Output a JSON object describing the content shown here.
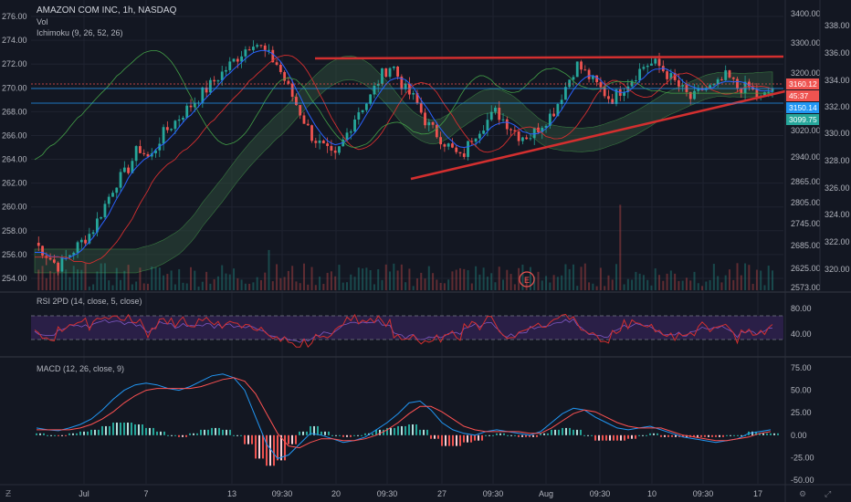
{
  "header": {
    "symbol": "AMAZON COM INC, 1h, NASDAQ",
    "vol_label": "Vol",
    "ichimoku_label": "Ichimoku (9, 26, 52, 26)"
  },
  "rsi_panel": {
    "label": "RSI 2PD (14, close, 5, close)"
  },
  "macd_panel": {
    "label": "MACD (12, 26, close, 9)"
  },
  "earnings_marker": "E",
  "colors": {
    "background": "#131722",
    "grid": "#1f2330",
    "bull": "#26a69a",
    "bear": "#ef5350",
    "trendline": "#d32f2f",
    "kijun": "#d32f2f",
    "tenkan": "#2962ff",
    "chikou": "#43a047",
    "cloud": "#2e4a3a",
    "rsi_band": "#2a1f47",
    "macd_line": "#2196f3",
    "signal_line": "#ff5252",
    "text": "#b2b5be"
  },
  "chart_data": [
    {
      "type": "candlestick",
      "title": "AMAZON COM INC, 1h, NASDAQ",
      "left_axis": {
        "ticks": [
          "276.00",
          "274.00",
          "272.00",
          "270.00",
          "268.00",
          "266.00",
          "264.00",
          "262.00",
          "260.00",
          "258.00",
          "256.00",
          "254.00"
        ],
        "range": [
          253,
          277
        ]
      },
      "right_axis_volume_price": {
        "ticks": [
          "3400.00",
          "3300.00",
          "3200.00",
          "3160.12",
          "3150.14",
          "3099.75",
          "3020.00",
          "2940.00",
          "2865.00",
          "2805.00",
          "2745.00",
          "2685.00",
          "2625.00",
          "2573.00"
        ]
      },
      "right_axis_outer": {
        "ticks": [
          "338.00",
          "336.00",
          "334.00",
          "332.00",
          "330.00",
          "328.00",
          "326.00",
          "324.00",
          "322.00",
          "320.00"
        ]
      },
      "price_tags": [
        {
          "text": "3160.12",
          "color": "#ef5350"
        },
        {
          "text": "45:37",
          "color": "#ef5350"
        },
        {
          "text": "3150.14",
          "color": "#2196f3"
        },
        {
          "text": "3099.75",
          "color": "#26a69a"
        }
      ],
      "x_ticks": [
        "Jul",
        "7",
        "13",
        "09:30",
        "20",
        "09:30",
        "27",
        "09:30",
        "Aug",
        "09:30",
        "10",
        "09:30",
        "17"
      ],
      "price_path": [
        257,
        256,
        255,
        256,
        257,
        258,
        260,
        262,
        263,
        265,
        264,
        266,
        267,
        268,
        269,
        270,
        271,
        272,
        273,
        274,
        273,
        272,
        270,
        268,
        266,
        265,
        264,
        266,
        268,
        269,
        271,
        272,
        270,
        269,
        267,
        266,
        265,
        264,
        266,
        267,
        268,
        267,
        266,
        266,
        267,
        268,
        270,
        272,
        271,
        270,
        269,
        270,
        271,
        272,
        272,
        271,
        270,
        269,
        270,
        270,
        271,
        270,
        270,
        269,
        270
      ],
      "trendlines": [
        {
          "from": [
            345,
            64
          ],
          "to": [
            858,
            62
          ]
        },
        {
          "from": [
            450,
            196
          ],
          "to": [
            860,
            100
          ]
        }
      ]
    },
    {
      "type": "line",
      "title": "RSI 2PD (14, close, 5, close)",
      "y_ticks": [
        "80.00",
        "40.00"
      ],
      "band": [
        30,
        70
      ]
    },
    {
      "type": "bar",
      "title": "MACD (12, 26, close, 9)",
      "y_ticks": [
        "75.00",
        "50.00",
        "25.00",
        "0.00",
        "-25.00",
        "-50.00"
      ],
      "ylim": [
        -52,
        78
      ],
      "series": [
        {
          "name": "MACD",
          "values": [
            8,
            6,
            5,
            8,
            12,
            18,
            28,
            40,
            50,
            56,
            58,
            56,
            52,
            50,
            54,
            60,
            66,
            68,
            64,
            50,
            20,
            -10,
            -26,
            -22,
            -10,
            2,
            0,
            -4,
            -8,
            -6,
            -2,
            6,
            14,
            24,
            36,
            38,
            28,
            14,
            6,
            2,
            0,
            4,
            6,
            4,
            2,
            0,
            4,
            14,
            24,
            30,
            28,
            20,
            14,
            8,
            6,
            8,
            10,
            6,
            2,
            -2,
            -4,
            -6,
            -8,
            -6,
            -4,
            2,
            4,
            6
          ]
        },
        {
          "name": "Signal",
          "values": [
            6,
            6,
            6,
            6,
            8,
            12,
            18,
            26,
            36,
            44,
            50,
            52,
            52,
            52,
            52,
            54,
            58,
            62,
            64,
            60,
            46,
            24,
            2,
            -12,
            -14,
            -8,
            -4,
            -4,
            -6,
            -6,
            -4,
            0,
            6,
            14,
            24,
            32,
            32,
            26,
            18,
            10,
            6,
            4,
            4,
            4,
            4,
            2,
            2,
            8,
            16,
            24,
            28,
            26,
            20,
            14,
            10,
            8,
            8,
            8,
            4,
            0,
            -2,
            -4,
            -6,
            -6,
            -4,
            -2,
            2,
            4
          ]
        }
      ]
    }
  ]
}
